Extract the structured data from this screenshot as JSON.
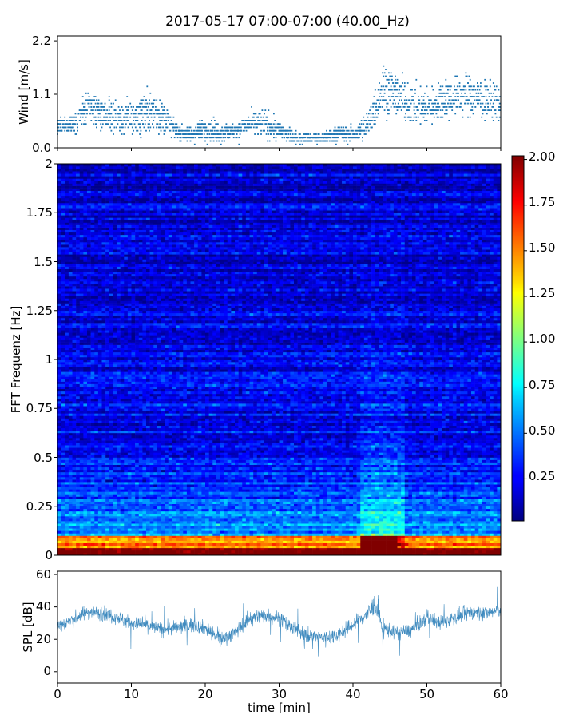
{
  "chart_data": [
    {
      "id": "wind",
      "type": "scatter",
      "title": "2017-05-17 07:00-07:00 (40.00_Hz)",
      "xlabel": "",
      "ylabel": "Wind [m/s]",
      "xlim": [
        0,
        60
      ],
      "ylim": [
        0,
        2.3
      ],
      "yticks": [
        "0.0",
        "1.1",
        "2.2"
      ],
      "color": "#1f77b4",
      "wind_profile": {
        "x": [
          0,
          2,
          4,
          6,
          8,
          10,
          12,
          14,
          16,
          18,
          20,
          22,
          24,
          26,
          28,
          30,
          32,
          34,
          36,
          38,
          40,
          42,
          44,
          46,
          48,
          50,
          52,
          54,
          56,
          58,
          60
        ],
        "mean": [
          0.45,
          0.5,
          0.8,
          0.7,
          0.6,
          0.6,
          0.75,
          0.7,
          0.35,
          0.25,
          0.4,
          0.3,
          0.35,
          0.5,
          0.5,
          0.35,
          0.2,
          0.2,
          0.2,
          0.3,
          0.25,
          0.45,
          1.2,
          1.1,
          0.85,
          0.8,
          1.0,
          1.05,
          1.1,
          1.0,
          0.9
        ],
        "spread": [
          0.15,
          0.2,
          0.35,
          0.3,
          0.3,
          0.35,
          0.4,
          0.35,
          0.15,
          0.15,
          0.2,
          0.2,
          0.2,
          0.2,
          0.25,
          0.2,
          0.1,
          0.1,
          0.1,
          0.15,
          0.15,
          0.3,
          0.5,
          0.45,
          0.4,
          0.35,
          0.4,
          0.4,
          0.4,
          0.4,
          0.35
        ]
      }
    },
    {
      "id": "spectrogram",
      "type": "heatmap",
      "xlabel": "",
      "ylabel": "FFT Frequenz [Hz]",
      "xlim": [
        0,
        60
      ],
      "ylim": [
        0,
        2
      ],
      "yticks": [
        "0",
        "0.25",
        "0.5",
        "0.75",
        "1",
        "1.25",
        "1.5",
        "1.75",
        "2"
      ],
      "colormap": "jet",
      "colorbar": {
        "range": [
          0,
          2.0
        ],
        "ticks": [
          "0.25",
          "0.50",
          "0.75",
          "1.00",
          "1.25",
          "1.50",
          "1.75",
          "2.00"
        ]
      },
      "intensity_notes": "Values near 0.2-0.5 across most frequencies; high values (1.5-2.0) at frequencies below 0.1 Hz; elevated band around 42-46 min up to ~0.6 Hz"
    },
    {
      "id": "spl",
      "type": "line",
      "xlabel": "time [min]",
      "ylabel": "SPL [dB]",
      "xlim": [
        0,
        60
      ],
      "ylim": [
        -7,
        62
      ],
      "xticks": [
        "0",
        "10",
        "20",
        "30",
        "40",
        "50",
        "60"
      ],
      "yticks": [
        "0",
        "20",
        "40",
        "60"
      ],
      "color": "#1f77b4",
      "spl_profile": {
        "x": [
          0,
          2,
          4,
          6,
          8,
          10,
          12,
          14,
          16,
          18,
          20,
          22,
          24,
          26,
          28,
          30,
          32,
          34,
          36,
          38,
          40,
          42,
          43,
          44,
          46,
          48,
          50,
          52,
          54,
          56,
          58,
          60
        ],
        "mean": [
          28,
          32,
          37,
          36,
          34,
          30,
          29,
          26,
          27,
          29,
          27,
          20,
          24,
          33,
          35,
          33,
          26,
          22,
          21,
          23,
          29,
          36,
          42,
          27,
          24,
          26,
          33,
          30,
          34,
          37,
          36,
          38
        ],
        "spread": [
          8,
          8,
          8,
          8,
          8,
          8,
          8,
          8,
          8,
          8,
          8,
          8,
          8,
          8,
          8,
          8,
          8,
          8,
          8,
          8,
          8,
          10,
          12,
          8,
          8,
          8,
          8,
          8,
          8,
          8,
          8,
          8
        ]
      }
    }
  ]
}
